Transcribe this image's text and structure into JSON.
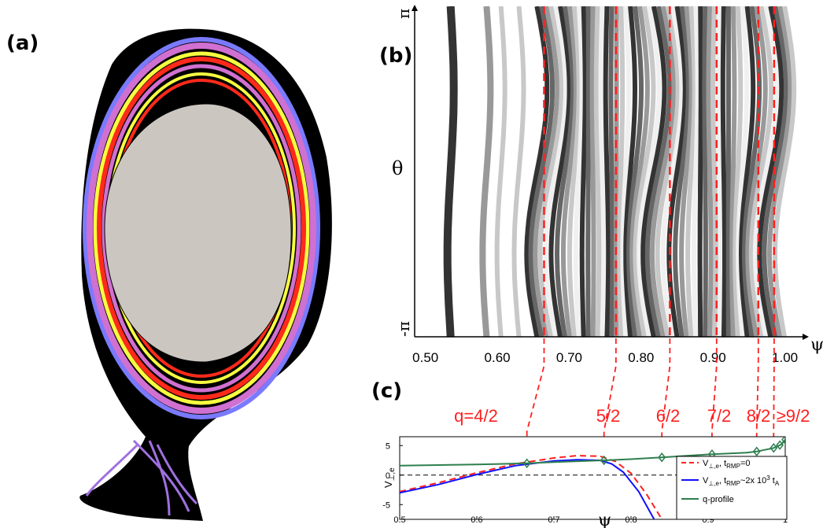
{
  "panels": {
    "a": "(a)",
    "b": "(b)",
    "c": "(c)"
  },
  "chart_data": [
    {
      "type": "heatmap",
      "panel": "(a)",
      "title": "",
      "colors": {
        "background": "#000000",
        "core": "#cbc7c0",
        "island_chain": [
          "#ff2a1a",
          "#f7ff40",
          "#d070d0",
          "#7a7aff"
        ]
      }
    },
    {
      "type": "heatmap",
      "panel": "(b)",
      "xlabel": "ψ",
      "ylabel": "θ",
      "xlim": [
        0.485,
        1.03
      ],
      "ylim": [
        -3.1416,
        3.1416
      ],
      "xticks": [
        "0.50",
        "0.60",
        "0.70",
        "0.80",
        "0.90",
        "1.00"
      ],
      "xtick_values": [
        0.5,
        0.6,
        0.7,
        0.8,
        0.9,
        1.0
      ],
      "yticks": [
        "-π",
        "π"
      ],
      "band_colors": [
        "#333333",
        "#666666",
        "#999999",
        "#c8c8c8",
        "#f0f0f0"
      ],
      "resonant_surfaces": [
        0.665,
        0.765,
        0.84,
        0.905,
        0.963,
        0.985
      ],
      "resonant_color": "#ff2020"
    },
    {
      "type": "line",
      "panel": "(c)",
      "xlabel": "ψ",
      "ylabel": "V⊥,e",
      "xlim": [
        0.5,
        1.0
      ],
      "ylim": [
        -7.5,
        6.5
      ],
      "xticks": [
        "0.5",
        "0.6",
        "0.7",
        "0.8",
        "0.9",
        "1"
      ],
      "xtick_values": [
        0.5,
        0.6,
        0.7,
        0.8,
        0.9,
        1.0
      ],
      "yticks": [
        "5",
        "0",
        "-5"
      ],
      "ytick_values": [
        5,
        0,
        -5
      ],
      "resonances": [
        {
          "label": "q=4/2",
          "psi": 0.665
        },
        {
          "label": "5/2",
          "psi": 0.765
        },
        {
          "label": "6/2",
          "psi": 0.84
        },
        {
          "label": "7/2",
          "psi": 0.905
        },
        {
          "label": "8/2",
          "psi": 0.963
        },
        {
          "label": "≥9/2",
          "psi": 0.985
        }
      ],
      "series": [
        {
          "label_main": "V",
          "label_sub": "⊥,e",
          "label_mid": ", t",
          "label_sub2": "RMP",
          "label_tail": "=0",
          "label_sup": "",
          "label_end": "",
          "color": "#ff2020",
          "dash": true,
          "x": [
            0.5,
            0.55,
            0.6,
            0.65,
            0.7,
            0.73,
            0.76,
            0.78,
            0.8,
            0.82,
            0.84
          ],
          "y": [
            -2.8,
            -1.3,
            0.4,
            1.9,
            2.9,
            3.3,
            3.2,
            2.3,
            0.3,
            -3.2,
            -7.5
          ]
        },
        {
          "label_main": "V",
          "label_sub": "⊥,e",
          "label_mid": ", t",
          "label_sub2": "RMP",
          "label_tail": "~2x 10",
          "label_sup": "3",
          "label_end": " t",
          "label_sub3": "A",
          "color": "#1010ff",
          "dash": false,
          "x": [
            0.5,
            0.55,
            0.6,
            0.65,
            0.7,
            0.73,
            0.76,
            0.775,
            0.79,
            0.81,
            0.83
          ],
          "y": [
            -3.0,
            -1.6,
            0.1,
            1.6,
            2.4,
            2.6,
            2.5,
            1.9,
            0.5,
            -2.8,
            -7.5
          ]
        },
        {
          "label_main": "q-profile",
          "color": "#2f7f4f",
          "dash": false,
          "markers": "diamond",
          "x": [
            0.5,
            0.6,
            0.665,
            0.7,
            0.765,
            0.8,
            0.84,
            0.9,
            0.95,
            0.963,
            0.985,
            0.995,
            1.0
          ],
          "y": [
            1.6,
            1.8,
            2.0,
            2.2,
            2.5,
            2.7,
            3.0,
            3.5,
            3.8,
            4.0,
            4.6,
            5.2,
            6.0
          ],
          "marker_x": [
            0.665,
            0.765,
            0.84,
            0.905,
            0.963,
            0.985,
            0.993,
            1.0
          ]
        }
      ]
    }
  ]
}
